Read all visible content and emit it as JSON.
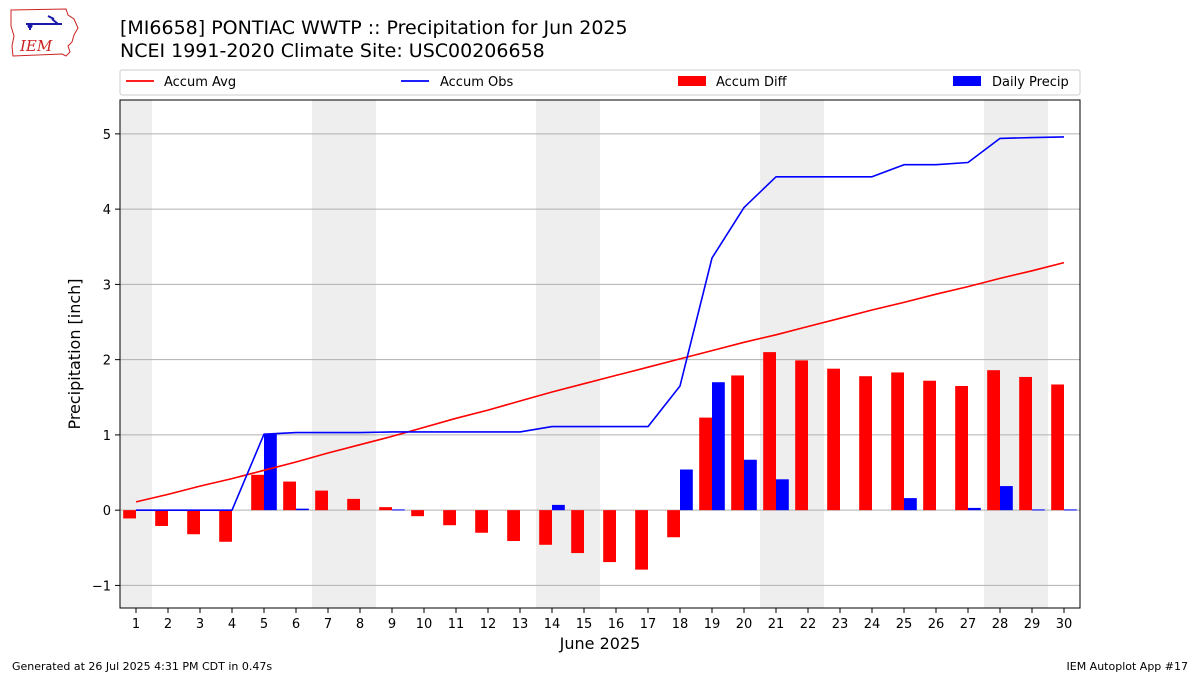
{
  "header": {
    "title_line1": "[MI6658] PONTIAC WWTP :: Precipitation for Jun 2025",
    "title_line2": "NCEI 1991-2020 Climate Site: USC00206658",
    "logo_text": "IEM"
  },
  "footer": {
    "left": "Generated at 26 Jul 2025 4:31 PM CDT in 0.47s",
    "right": "IEM Autoplot App #17"
  },
  "colors": {
    "accum_avg": "#ff0000",
    "accum_obs": "#0000ff",
    "accum_diff": "#ff0000",
    "daily_precip": "#0000ff",
    "weekend_shade": "#eeeeee",
    "grid": "#b0b0b0"
  },
  "chart_data": {
    "type": "bar",
    "xlabel": "June 2025",
    "ylabel": "Precipitation [inch]",
    "ylim": [
      -1.3,
      5.45
    ],
    "xlim": [
      0.5,
      30.5
    ],
    "yticks": [
      -1,
      0,
      1,
      2,
      3,
      4,
      5
    ],
    "ytick_labels": [
      "−1",
      "0",
      "1",
      "2",
      "3",
      "4",
      "5"
    ],
    "days": [
      1,
      2,
      3,
      4,
      5,
      6,
      7,
      8,
      9,
      10,
      11,
      12,
      13,
      14,
      15,
      16,
      17,
      18,
      19,
      20,
      21,
      22,
      23,
      24,
      25,
      26,
      27,
      28,
      29,
      30
    ],
    "grid": "y",
    "legend_position": "top",
    "shaded_days": [
      1,
      7,
      8,
      14,
      15,
      21,
      22,
      28,
      29
    ],
    "series": [
      {
        "name": "Accum Avg",
        "kind": "line",
        "values": [
          0.11,
          0.21,
          0.32,
          0.42,
          0.53,
          0.64,
          0.76,
          0.87,
          0.98,
          1.1,
          1.22,
          1.33,
          1.45,
          1.57,
          1.68,
          1.79,
          1.9,
          2.01,
          2.12,
          2.23,
          2.33,
          2.44,
          2.55,
          2.66,
          2.76,
          2.87,
          2.97,
          3.08,
          3.18,
          3.29
        ]
      },
      {
        "name": "Accum Obs",
        "kind": "line",
        "values": [
          0.0,
          0.0,
          0.0,
          0.0,
          1.01,
          1.03,
          1.03,
          1.03,
          1.04,
          1.04,
          1.04,
          1.04,
          1.04,
          1.11,
          1.11,
          1.11,
          1.11,
          1.65,
          3.35,
          4.02,
          4.43,
          4.43,
          4.43,
          4.43,
          4.59,
          4.59,
          4.62,
          4.94,
          4.95,
          4.96
        ]
      },
      {
        "name": "Accum Diff",
        "kind": "bar",
        "values": [
          -0.11,
          -0.21,
          -0.32,
          -0.42,
          0.47,
          0.38,
          0.26,
          0.15,
          0.04,
          -0.08,
          -0.2,
          -0.3,
          -0.41,
          -0.46,
          -0.57,
          -0.69,
          -0.79,
          -0.36,
          1.23,
          1.79,
          2.1,
          1.99,
          1.88,
          1.78,
          1.83,
          1.72,
          1.65,
          1.86,
          1.77,
          1.67
        ]
      },
      {
        "name": "Daily Precip",
        "kind": "bar",
        "values": [
          0,
          0,
          0,
          0,
          1.01,
          0.02,
          0,
          0,
          0.01,
          0,
          0,
          0,
          0,
          0.07,
          0,
          0,
          0,
          0.54,
          1.7,
          0.67,
          0.41,
          0,
          0,
          0,
          0.16,
          0,
          0.03,
          0.32,
          0.01,
          0.01
        ]
      }
    ]
  }
}
